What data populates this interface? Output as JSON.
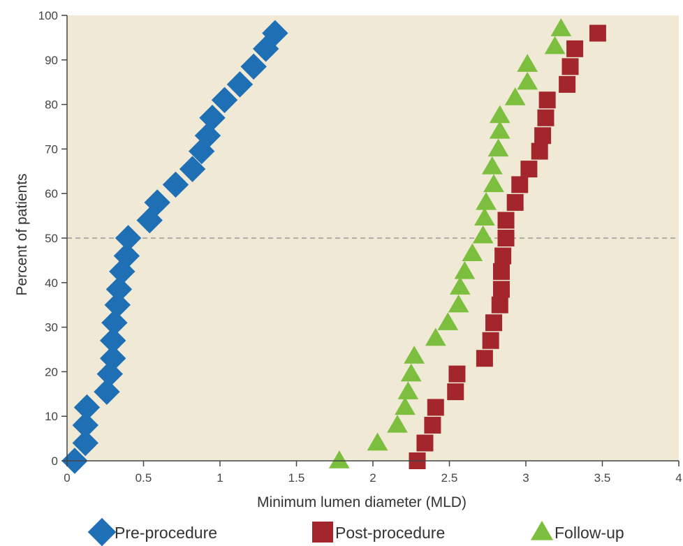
{
  "chart_data": {
    "type": "scatter",
    "title": "",
    "xlabel": "Minimum lumen diameter (MLD)",
    "ylabel": "Percent of patients",
    "xlim": [
      0,
      4
    ],
    "ylim": [
      0,
      100
    ],
    "xticks": [
      0,
      0.5,
      1,
      1.5,
      2,
      2.5,
      3,
      3.5,
      4
    ],
    "xtick_labels": [
      "0",
      "0.5",
      "1",
      "1.5",
      "2",
      "2.5",
      "3",
      "3.5",
      "4"
    ],
    "yticks": [
      0,
      10,
      20,
      30,
      40,
      50,
      60,
      70,
      80,
      90,
      100
    ],
    "ytick_labels": [
      "0",
      "10",
      "20",
      "30",
      "40",
      "50",
      "60",
      "70",
      "80",
      "90",
      "100"
    ],
    "grid": false,
    "reference_line": {
      "y": 50,
      "style": "dashed"
    },
    "background_color": "#efe9d6",
    "legend_position": "bottom",
    "series": [
      {
        "name": "Pre-procedure",
        "marker": "diamond",
        "color": "#1f6fb5",
        "points": [
          [
            0.05,
            0
          ],
          [
            0.12,
            4
          ],
          [
            0.12,
            8
          ],
          [
            0.13,
            12
          ],
          [
            0.26,
            15.5
          ],
          [
            0.28,
            19.5
          ],
          [
            0.3,
            23
          ],
          [
            0.3,
            27
          ],
          [
            0.31,
            31
          ],
          [
            0.33,
            35
          ],
          [
            0.34,
            38.5
          ],
          [
            0.36,
            42.5
          ],
          [
            0.39,
            46
          ],
          [
            0.4,
            50
          ],
          [
            0.54,
            54
          ],
          [
            0.59,
            58
          ],
          [
            0.71,
            62
          ],
          [
            0.82,
            65.5
          ],
          [
            0.88,
            69.5
          ],
          [
            0.92,
            73
          ],
          [
            0.95,
            77
          ],
          [
            1.03,
            81
          ],
          [
            1.13,
            84.5
          ],
          [
            1.22,
            88.5
          ],
          [
            1.3,
            92.5
          ],
          [
            1.36,
            96
          ]
        ]
      },
      {
        "name": "Post-procedure",
        "marker": "square",
        "color": "#a3262c",
        "points": [
          [
            2.29,
            0
          ],
          [
            2.34,
            4
          ],
          [
            2.39,
            8
          ],
          [
            2.41,
            12
          ],
          [
            2.54,
            15.5
          ],
          [
            2.55,
            19.5
          ],
          [
            2.73,
            23
          ],
          [
            2.77,
            27
          ],
          [
            2.79,
            31
          ],
          [
            2.83,
            35
          ],
          [
            2.84,
            38.5
          ],
          [
            2.84,
            42.5
          ],
          [
            2.85,
            46
          ],
          [
            2.87,
            50
          ],
          [
            2.87,
            54
          ],
          [
            2.93,
            58
          ],
          [
            2.96,
            62
          ],
          [
            3.02,
            65.5
          ],
          [
            3.09,
            69.5
          ],
          [
            3.11,
            73
          ],
          [
            3.13,
            77
          ],
          [
            3.14,
            81
          ],
          [
            3.27,
            84.5
          ],
          [
            3.29,
            88.5
          ],
          [
            3.32,
            92.5
          ],
          [
            3.47,
            96
          ]
        ]
      },
      {
        "name": "Follow-up",
        "marker": "triangle",
        "color": "#7cbf3e",
        "points": [
          [
            1.78,
            0
          ],
          [
            2.03,
            4
          ],
          [
            2.16,
            8
          ],
          [
            2.21,
            12
          ],
          [
            2.23,
            15.5
          ],
          [
            2.25,
            19.5
          ],
          [
            2.27,
            23.5
          ],
          [
            2.41,
            27.5
          ],
          [
            2.49,
            31
          ],
          [
            2.56,
            35
          ],
          [
            2.57,
            39
          ],
          [
            2.6,
            42.5
          ],
          [
            2.65,
            46.5
          ],
          [
            2.72,
            50.5
          ],
          [
            2.73,
            54.5
          ],
          [
            2.74,
            58
          ],
          [
            2.79,
            62
          ],
          [
            2.78,
            66
          ],
          [
            2.82,
            70
          ],
          [
            2.83,
            74
          ],
          [
            2.83,
            77.5
          ],
          [
            2.93,
            81.5
          ],
          [
            3.01,
            85
          ],
          [
            3.01,
            89
          ],
          [
            3.19,
            93
          ],
          [
            3.23,
            97
          ]
        ]
      }
    ]
  }
}
